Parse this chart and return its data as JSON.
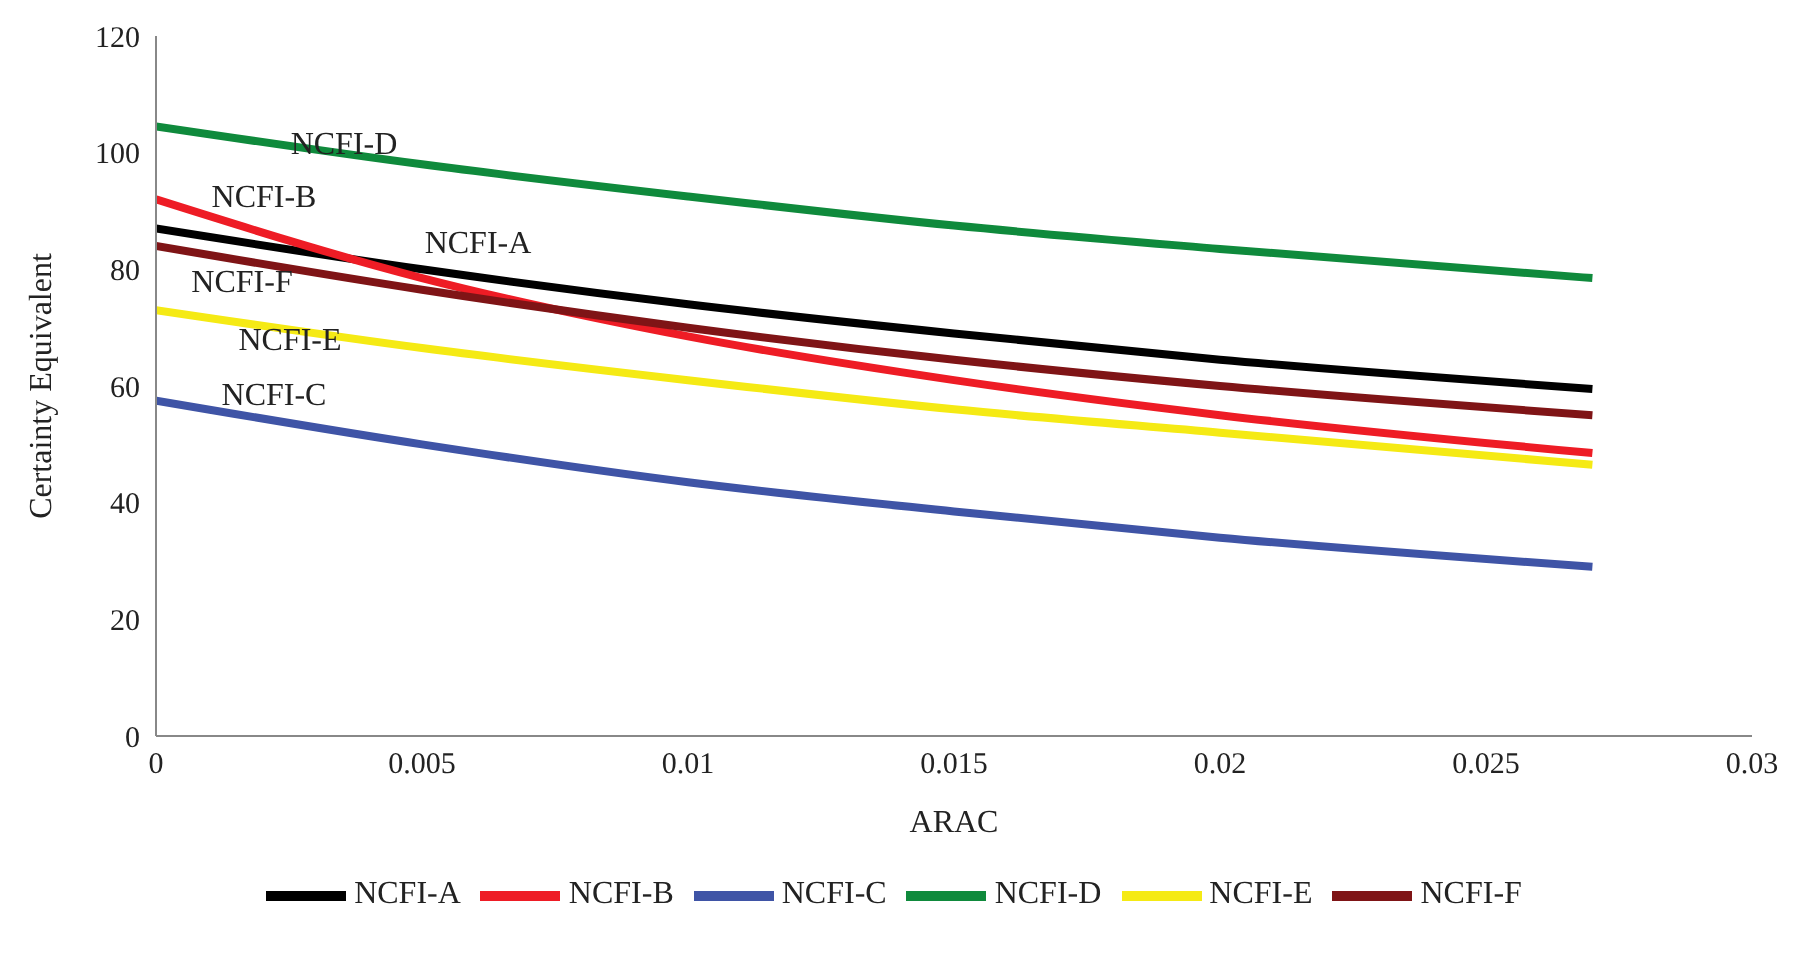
{
  "chart_data": {
    "type": "line",
    "xlabel": "ARAC",
    "ylabel": "Certainty Equivalent",
    "x": [
      0,
      0.005,
      0.01,
      0.015,
      0.02,
      0.027
    ],
    "series": [
      {
        "name": "NCFI-A",
        "color": "#000000",
        "values": [
          87,
          80,
          74,
          69,
          64.5,
          59.5
        ]
      },
      {
        "name": "NCFI-B",
        "color": "#ee1c25",
        "values": [
          92,
          78.5,
          68.5,
          61,
          55,
          48.5
        ]
      },
      {
        "name": "NCFI-C",
        "color": "#3f54a6",
        "values": [
          57.5,
          50,
          43.5,
          38.5,
          34,
          29
        ]
      },
      {
        "name": "NCFI-D",
        "color": "#0f8a3c",
        "values": [
          104.5,
          98,
          92.5,
          87.5,
          83.5,
          78.5
        ]
      },
      {
        "name": "NCFI-E",
        "color": "#f5ea14",
        "values": [
          73,
          66.5,
          61,
          56,
          52,
          46.5
        ]
      },
      {
        "name": "NCFI-F",
        "color": "#7f1416",
        "values": [
          84,
          76.5,
          70,
          64.5,
          60,
          55
        ]
      }
    ],
    "xlim": [
      0,
      0.03
    ],
    "xticks": [
      0,
      0.005,
      0.01,
      0.015,
      0.02,
      0.025,
      0.03
    ],
    "ylim": [
      0,
      120
    ],
    "yticks": [
      0,
      20,
      40,
      60,
      80,
      100,
      120
    ],
    "grid": false,
    "legend": "bottom",
    "marker": "none",
    "line_style": "solid"
  }
}
